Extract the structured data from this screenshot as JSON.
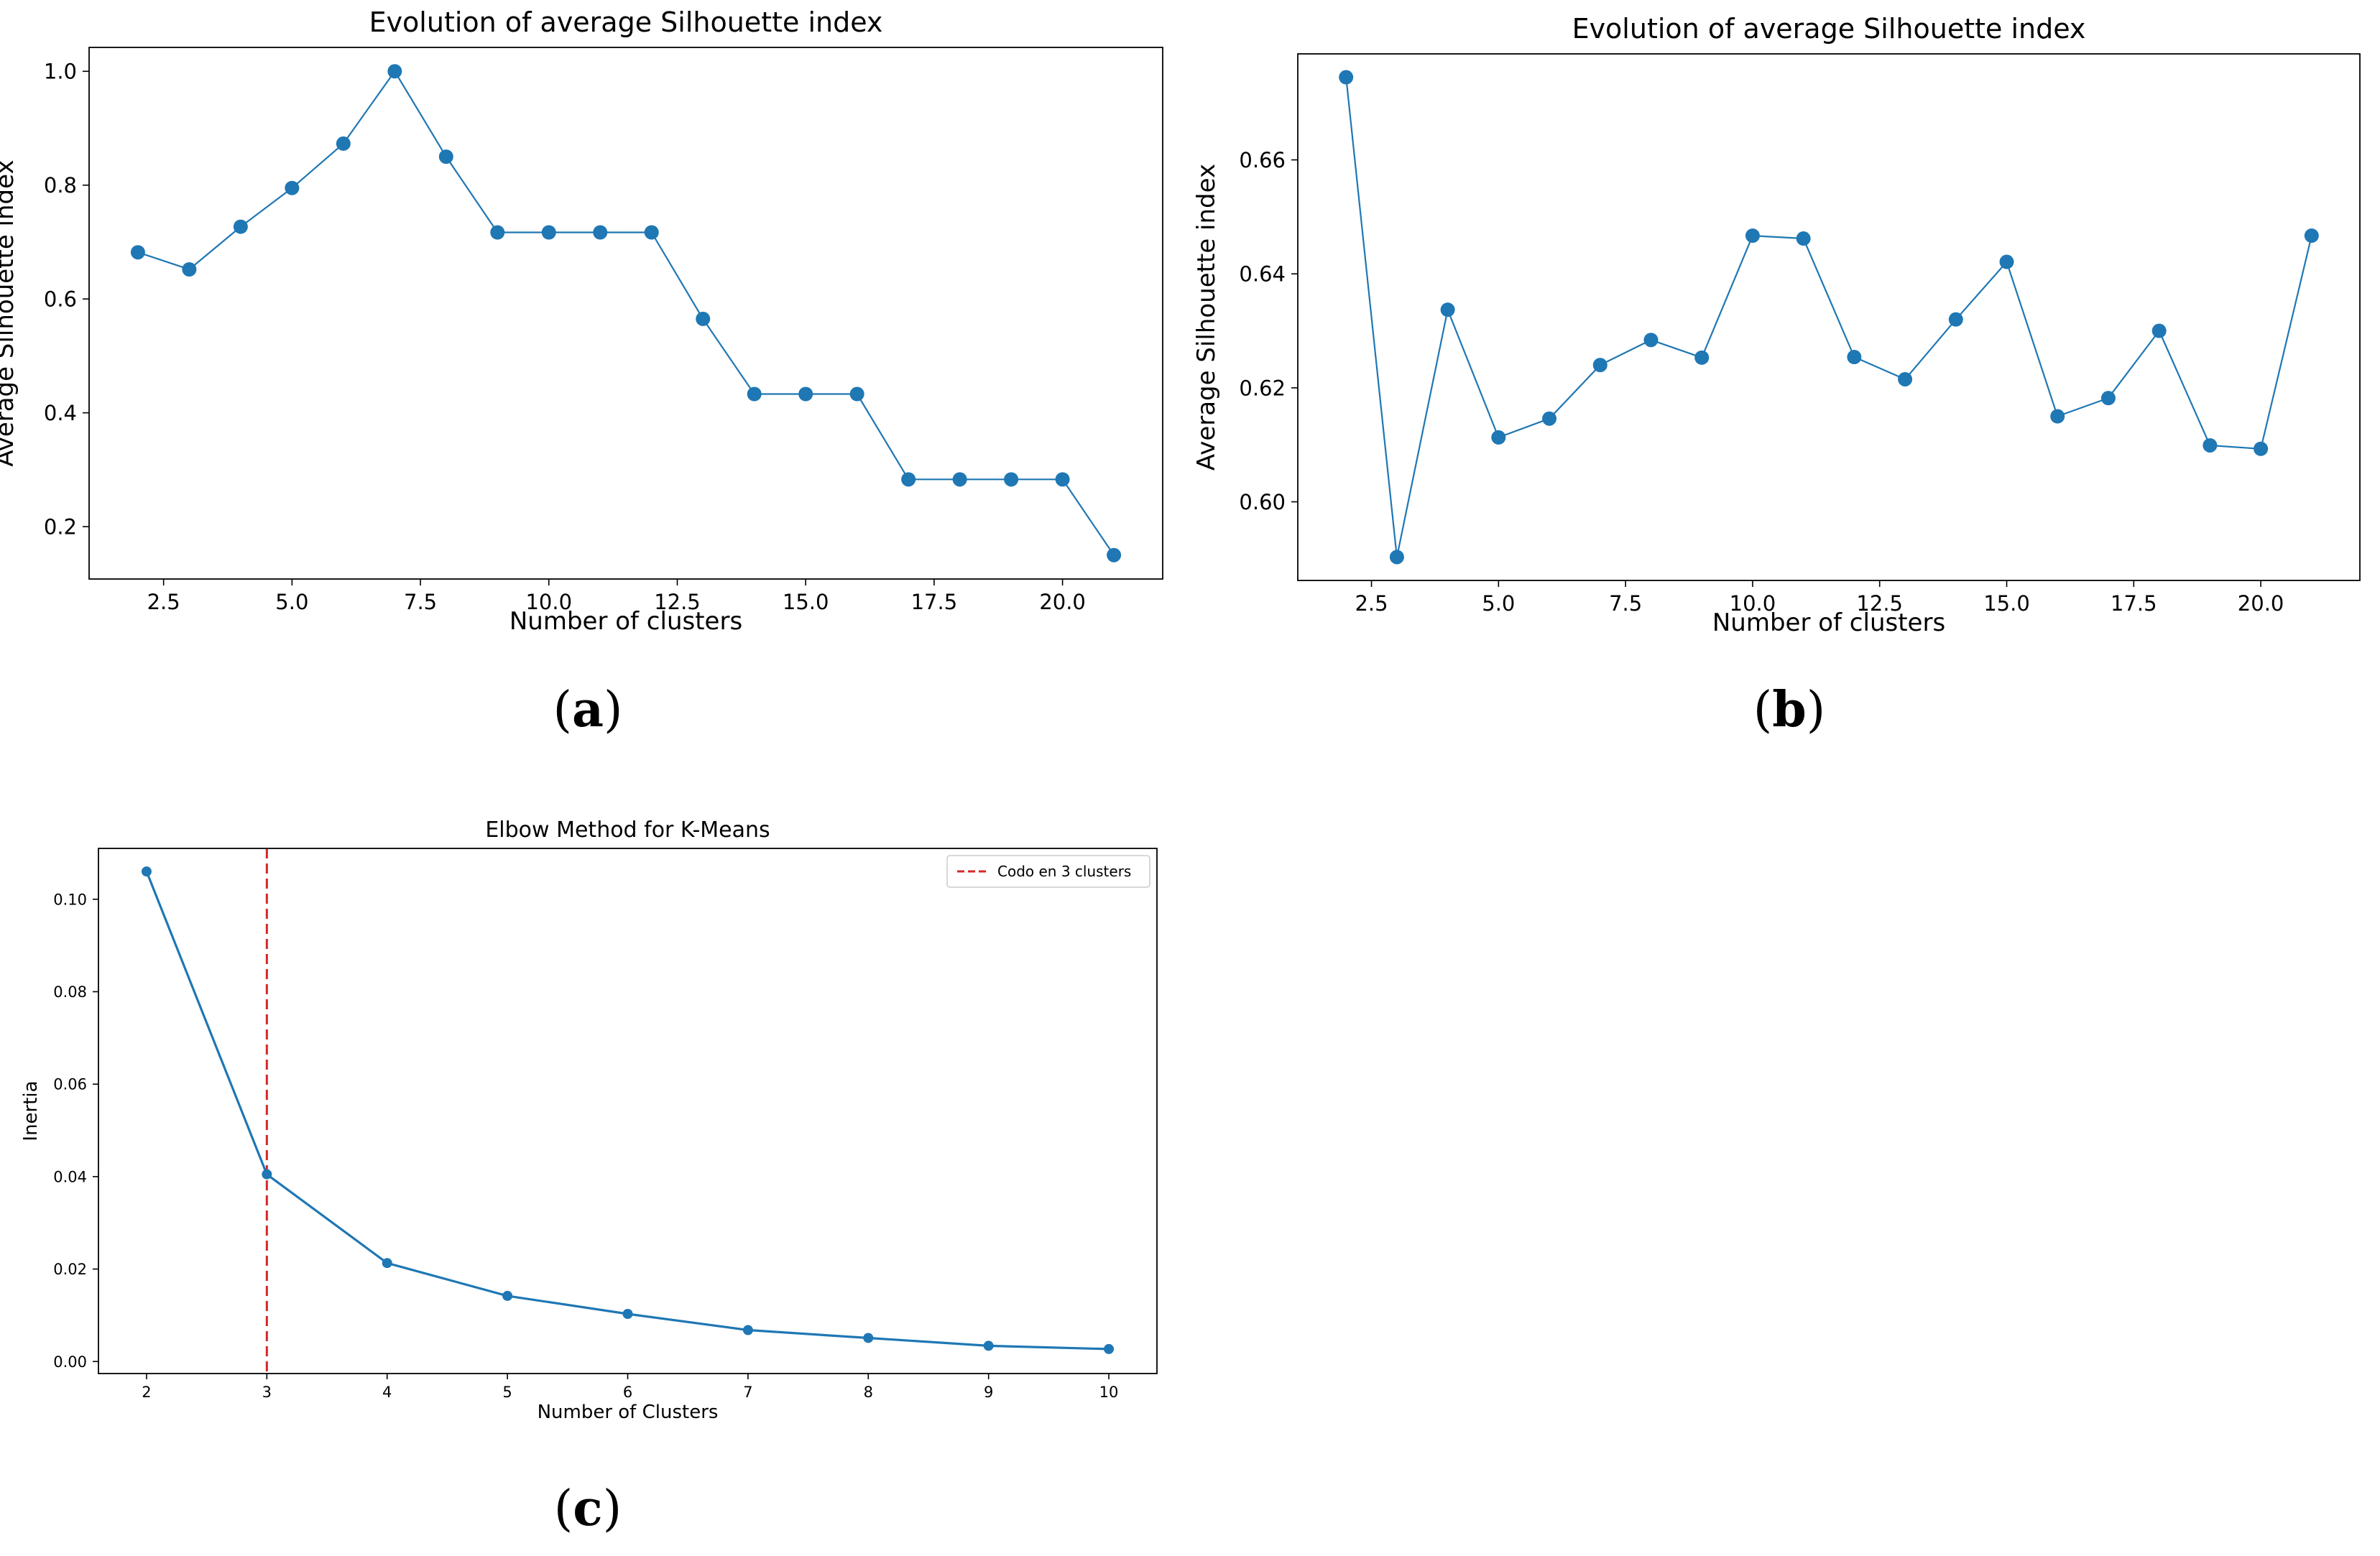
{
  "captions": {
    "a": "a",
    "b": "b",
    "c": "c"
  },
  "colors": {
    "series": "#1f77b4",
    "vline": "#d62728",
    "axis": "#000000"
  },
  "chart_data": [
    {
      "id": "a",
      "type": "line",
      "title": "Evolution of average Silhouette index",
      "xlabel": "Number of clusters",
      "ylabel": "Average Silhouette index",
      "xlim": [
        1.05,
        21.95
      ],
      "ylim": [
        0.108,
        1.042
      ],
      "xticks": [
        2.5,
        5.0,
        7.5,
        10.0,
        12.5,
        15.0,
        17.5,
        20.0
      ],
      "xtick_labels": [
        "2.5",
        "5.0",
        "7.5",
        "10.0",
        "12.5",
        "15.0",
        "17.5",
        "20.0"
      ],
      "yticks": [
        0.2,
        0.4,
        0.6,
        0.8,
        1.0
      ],
      "ytick_labels": [
        "0.2",
        "0.4",
        "0.6",
        "0.8",
        "1.0"
      ],
      "x": [
        2,
        3,
        4,
        5,
        6,
        7,
        8,
        9,
        10,
        11,
        12,
        13,
        14,
        15,
        16,
        17,
        18,
        19,
        20,
        21
      ],
      "y": [
        0.682,
        0.652,
        0.727,
        0.795,
        0.873,
        1.0,
        0.85,
        0.717,
        0.717,
        0.717,
        0.717,
        0.565,
        0.433,
        0.433,
        0.433,
        0.283,
        0.283,
        0.283,
        0.283,
        0.15
      ]
    },
    {
      "id": "b",
      "type": "line",
      "title": "Evolution of average Silhouette index",
      "xlabel": "Number of clusters",
      "ylabel": "Average Silhouette index",
      "xlim": [
        1.05,
        21.95
      ],
      "ylim": [
        0.5862,
        0.6786
      ],
      "xticks": [
        2.5,
        5.0,
        7.5,
        10.0,
        12.5,
        15.0,
        17.5,
        20.0
      ],
      "xtick_labels": [
        "2.5",
        "5.0",
        "7.5",
        "10.0",
        "12.5",
        "15.0",
        "17.5",
        "20.0"
      ],
      "yticks": [
        0.6,
        0.62,
        0.64,
        0.66
      ],
      "ytick_labels": [
        "0.60",
        "0.62",
        "0.64",
        "0.66"
      ],
      "x": [
        2,
        3,
        4,
        5,
        6,
        7,
        8,
        9,
        10,
        11,
        12,
        13,
        14,
        15,
        16,
        17,
        18,
        19,
        20,
        21
      ],
      "y": [
        0.6745,
        0.5903,
        0.6337,
        0.6113,
        0.6146,
        0.624,
        0.6284,
        0.6253,
        0.6467,
        0.6462,
        0.6254,
        0.6215,
        0.632,
        0.6421,
        0.615,
        0.6182,
        0.63,
        0.6099,
        0.6093,
        0.6467
      ]
    },
    {
      "id": "c",
      "type": "line",
      "title": "Elbow Method for K-Means",
      "xlabel": "Number of Clusters",
      "ylabel": "Inertia",
      "xlim": [
        1.6,
        10.4
      ],
      "ylim": [
        -0.0026,
        0.111
      ],
      "xticks": [
        2,
        3,
        4,
        5,
        6,
        7,
        8,
        9,
        10
      ],
      "xtick_labels": [
        "2",
        "3",
        "4",
        "5",
        "6",
        "7",
        "8",
        "9",
        "10"
      ],
      "yticks": [
        0.0,
        0.02,
        0.04,
        0.06,
        0.08,
        0.1
      ],
      "ytick_labels": [
        "0.00",
        "0.02",
        "0.04",
        "0.06",
        "0.08",
        "0.10"
      ],
      "x": [
        2,
        3,
        4,
        5,
        6,
        7,
        8,
        9,
        10
      ],
      "y": [
        0.106,
        0.0405,
        0.0213,
        0.0142,
        0.0103,
        0.0068,
        0.0051,
        0.0034,
        0.0027
      ],
      "vline": {
        "x": 3,
        "label": "Codo en 3 clusters"
      },
      "legend_position": "top-right"
    }
  ]
}
